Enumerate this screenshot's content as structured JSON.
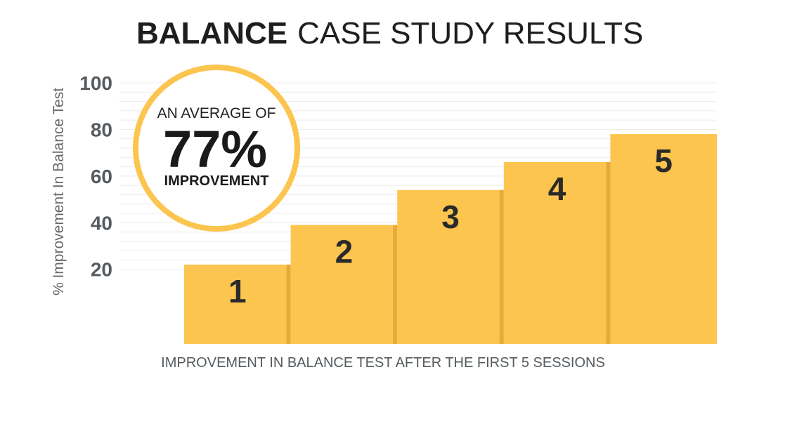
{
  "title": {
    "bold": "BALANCE",
    "light": "CASE STUDY RESULTS"
  },
  "colors": {
    "bar": "#fcc54f",
    "bar_shadow": "#e9a93a",
    "badge_ring": "#fcc54f",
    "grid": "#ececec"
  },
  "badge": {
    "top": "AN AVERAGE OF",
    "value": "77%",
    "bottom": "IMPROVEMENT"
  },
  "chart_data": {
    "type": "bar",
    "categories": [
      "1",
      "2",
      "3",
      "4",
      "5"
    ],
    "values": [
      22,
      39,
      54,
      66,
      78
    ],
    "xlabel": "IMPROVEMENT IN BALANCE TEST AFTER THE FIRST 5 SESSIONS",
    "ylabel": "% Improvement In Balance Test",
    "yticks": [
      20,
      40,
      60,
      80,
      100
    ],
    "ylim": [
      -12,
      100
    ],
    "grid": true
  }
}
